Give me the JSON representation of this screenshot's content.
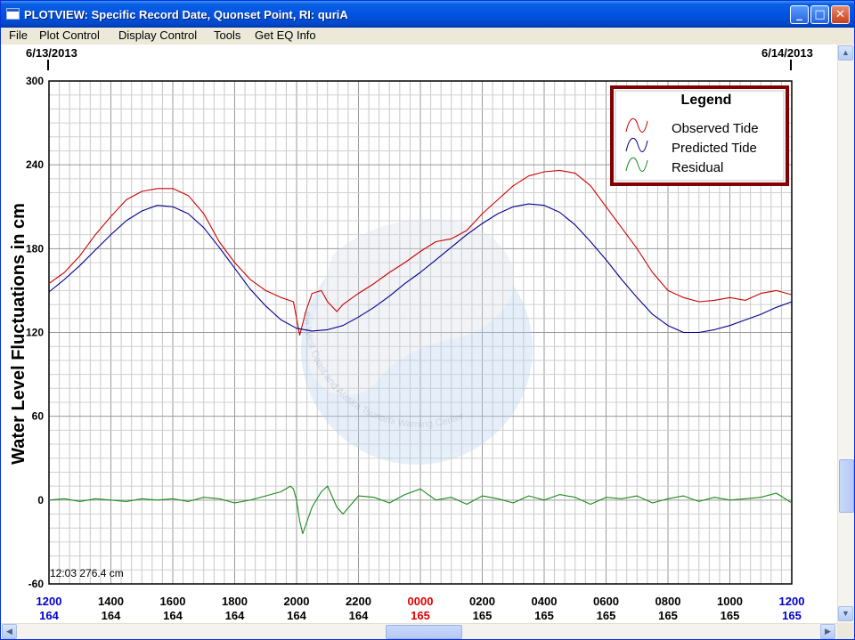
{
  "window": {
    "title": "PLOTVIEW: Specific Record Date, Quonset Point, RI: quriA",
    "buttons": {
      "minimize": "_",
      "maximize": "□",
      "close": "✕"
    }
  },
  "menu": [
    "File",
    "Plot Control",
    "Display Control",
    "Tools",
    "Get EQ Info"
  ],
  "dates": {
    "start": "6/13/2013",
    "end": "6/14/2013"
  },
  "cursor_readout": "12:03 276.4 cm",
  "watermark": "the West Coast and Alaska Tsunami Warning Center",
  "colors": {
    "observed": "#cc0000",
    "predicted": "#00008b",
    "residual": "#1a8a1a",
    "legend_border": "#800000",
    "midnight": "#e00000",
    "edge_label": "#0000cc"
  },
  "chart_data": {
    "type": "line",
    "ylabel": "Water Level Fluctuations in cm",
    "ylim": [
      -60,
      300
    ],
    "y_ticks": [
      300,
      240,
      180,
      120,
      60,
      0,
      -60
    ],
    "x_ticks": [
      {
        "time": "1200",
        "day": "164"
      },
      {
        "time": "1400",
        "day": "164"
      },
      {
        "time": "1600",
        "day": "164"
      },
      {
        "time": "1800",
        "day": "164"
      },
      {
        "time": "2000",
        "day": "164"
      },
      {
        "time": "2200",
        "day": "164"
      },
      {
        "time": "0000",
        "day": "165"
      },
      {
        "time": "0200",
        "day": "165"
      },
      {
        "time": "0400",
        "day": "165"
      },
      {
        "time": "0600",
        "day": "165"
      },
      {
        "time": "0800",
        "day": "165"
      },
      {
        "time": "1000",
        "day": "165"
      },
      {
        "time": "1200",
        "day": "165"
      }
    ],
    "x_unit": "hours since 6/13/2013 12:00",
    "grid": true,
    "legend": {
      "title": "Legend",
      "position": "top-right"
    },
    "series": [
      {
        "name": "Observed Tide",
        "key": "observed",
        "x": [
          0,
          0.5,
          1,
          1.5,
          2,
          2.5,
          3,
          3.5,
          4,
          4.5,
          5,
          5.5,
          6,
          6.5,
          7,
          7.5,
          7.9,
          8,
          8.1,
          8.3,
          8.5,
          8.8,
          9,
          9.3,
          9.5,
          10,
          10.5,
          11,
          11.5,
          12,
          12.5,
          13,
          13.5,
          14,
          14.5,
          15,
          15.5,
          16,
          16.5,
          17,
          17.5,
          18,
          18.5,
          19,
          19.5,
          20,
          20.5,
          21,
          21.5,
          22,
          22.5,
          23,
          23.5,
          24
        ],
        "y": [
          155,
          163,
          175,
          190,
          203,
          215,
          221,
          223,
          223,
          218,
          205,
          185,
          170,
          158,
          150,
          145,
          142,
          130,
          118,
          135,
          148,
          150,
          142,
          135,
          140,
          148,
          155,
          163,
          170,
          178,
          185,
          187,
          193,
          205,
          215,
          225,
          232,
          235,
          236,
          234,
          225,
          210,
          195,
          180,
          163,
          150,
          145,
          142,
          143,
          145,
          143,
          148,
          150,
          147
        ]
      },
      {
        "name": "Predicted Tide",
        "key": "predicted",
        "x": [
          0,
          0.5,
          1,
          1.5,
          2,
          2.5,
          3,
          3.5,
          4,
          4.5,
          5,
          5.5,
          6,
          6.5,
          7,
          7.5,
          8,
          8.5,
          9,
          9.5,
          10,
          10.5,
          11,
          11.5,
          12,
          12.5,
          13,
          13.5,
          14,
          14.5,
          15,
          15.5,
          16,
          16.5,
          17,
          17.5,
          18,
          18.5,
          19,
          19.5,
          20,
          20.5,
          21,
          21.5,
          22,
          22.5,
          23,
          23.5,
          24
        ],
        "y": [
          149,
          158,
          168,
          179,
          190,
          200,
          207,
          211,
          210,
          205,
          195,
          181,
          166,
          151,
          139,
          129,
          123,
          121,
          122,
          125,
          131,
          138,
          146,
          155,
          163,
          172,
          181,
          190,
          198,
          205,
          210,
          212,
          211,
          206,
          197,
          185,
          172,
          158,
          145,
          133,
          125,
          120,
          120,
          122,
          125,
          129,
          133,
          138,
          142
        ]
      },
      {
        "name": "Residual",
        "key": "residual",
        "x": [
          0,
          0.5,
          1,
          1.5,
          2,
          2.5,
          3,
          3.5,
          4,
          4.5,
          5,
          5.5,
          6,
          6.5,
          7,
          7.5,
          7.8,
          7.9,
          8,
          8.1,
          8.2,
          8.5,
          8.8,
          9,
          9.3,
          9.5,
          10,
          10.5,
          11,
          11.5,
          12,
          12.5,
          13,
          13.5,
          14,
          14.5,
          15,
          15.5,
          16,
          16.5,
          17,
          17.5,
          18,
          18.5,
          19,
          19.5,
          20,
          20.5,
          21,
          21.5,
          22,
          22.5,
          23,
          23.5,
          24
        ],
        "y": [
          0,
          1,
          -1,
          1,
          0,
          -1,
          1,
          0,
          1,
          -1,
          2,
          1,
          -2,
          0,
          3,
          6,
          10,
          8,
          0,
          -15,
          -24,
          -5,
          6,
          10,
          -5,
          -10,
          3,
          2,
          -2,
          4,
          8,
          0,
          2,
          -3,
          3,
          1,
          -2,
          3,
          0,
          4,
          2,
          -3,
          2,
          1,
          3,
          -2,
          1,
          3,
          -1,
          2,
          0,
          1,
          2,
          5,
          -2
        ]
      }
    ]
  }
}
